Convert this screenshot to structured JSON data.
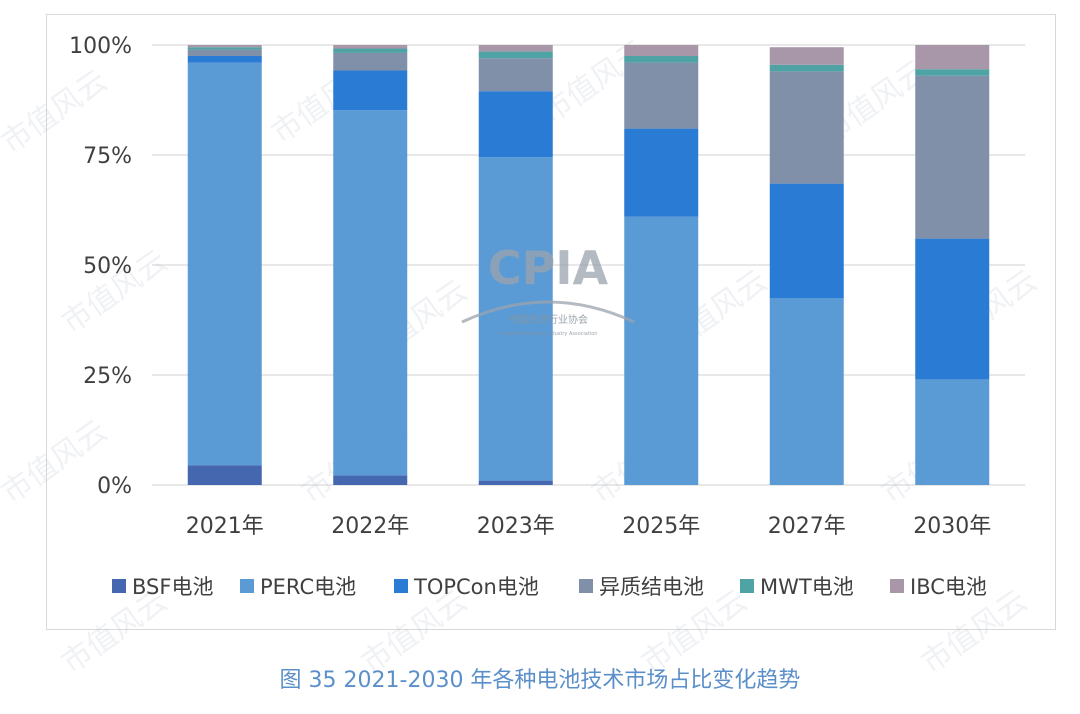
{
  "figure": {
    "caption": "图 35    2021-2030 年各种电池技术市场占比变化趋势",
    "watermark_text": "市值风云",
    "logo": {
      "text": "CPIA",
      "subtitle": "中国光伏行业协会",
      "subtitle_en": "China Photovoltaic Industry Association"
    }
  },
  "chart_data": {
    "type": "bar",
    "stacked": true,
    "title": "",
    "xlabel": "",
    "ylabel": "",
    "categories": [
      "2021年",
      "2022年",
      "2023年",
      "2025年",
      "2027年",
      "2030年"
    ],
    "ylim": [
      0,
      100
    ],
    "yticks": [
      "0%",
      "25%",
      "50%",
      "75%",
      "100%"
    ],
    "ytick_values": [
      0,
      25,
      50,
      75,
      100
    ],
    "grid": true,
    "legend_position": "bottom",
    "series": [
      {
        "name": "BSF电池",
        "color": "#4467b0",
        "values": [
          4.5,
          2.2,
          1.0,
          0,
          0,
          0
        ]
      },
      {
        "name": "PERC电池",
        "color": "#5b9bd5",
        "values": [
          91.5,
          83.0,
          73.5,
          61.0,
          42.5,
          24.0
        ]
      },
      {
        "name": "TOPCon电池",
        "color": "#2a7bd4",
        "values": [
          1.5,
          9.0,
          15.0,
          20.0,
          26.0,
          32.0
        ]
      },
      {
        "name": "异质结电池",
        "color": "#8090a8",
        "values": [
          1.5,
          4.0,
          7.5,
          15.0,
          25.5,
          37.0
        ]
      },
      {
        "name": "MWT电池",
        "color": "#4fa3a5",
        "values": [
          0.5,
          1.0,
          1.5,
          1.5,
          1.5,
          1.5
        ]
      },
      {
        "name": "IBC电池",
        "color": "#a797a9",
        "values": [
          0.5,
          0.8,
          1.5,
          2.5,
          4.0,
          5.5
        ]
      }
    ]
  }
}
